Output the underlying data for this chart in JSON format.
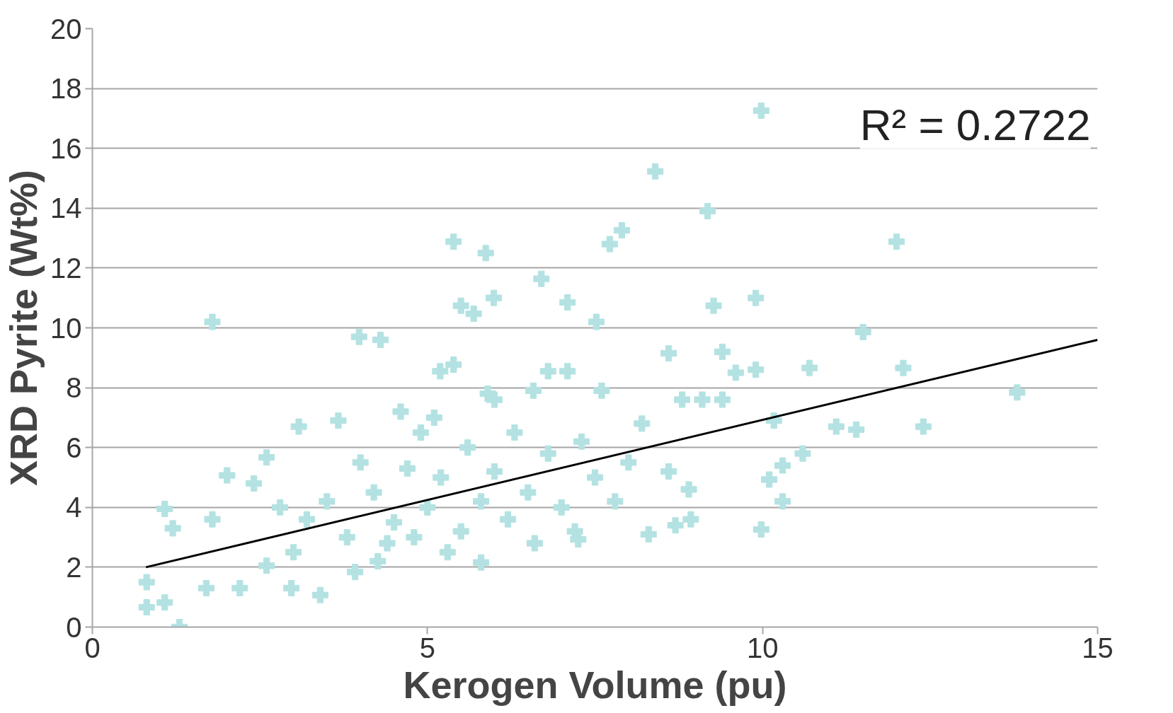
{
  "chart_data": {
    "type": "scatter",
    "xlabel": "Kerogen Volume (pu)",
    "ylabel": "XRD Pyrite (Wt%)",
    "xlim": [
      0,
      15
    ],
    "xticks": [
      0,
      5,
      10,
      15
    ],
    "ylim": [
      0,
      20
    ],
    "yticks": [
      0,
      2,
      4,
      6,
      8,
      10,
      12,
      14,
      16,
      18,
      20
    ],
    "grid": "y",
    "annotations": [
      "R² = 0.2722"
    ],
    "series": [
      {
        "marker": "cross",
        "color": "#b4e2e2",
        "x": [
          0.81,
          0.81,
          1.08,
          1.08,
          1.2,
          1.3,
          1.79,
          1.79,
          2.01,
          1.7,
          2.41,
          2.6,
          3.08,
          3.4,
          3.67,
          3.98,
          4.3,
          4.6,
          5.19,
          5.39,
          5.39,
          5.5,
          5.69,
          5.87,
          5.99,
          6.7,
          7.09,
          7.09,
          6.8,
          6.58,
          7.52,
          7.72,
          7.9,
          8.4,
          9.18,
          8.6,
          9.27,
          9.4,
          9.6,
          9.9,
          9.9,
          9.98,
          9.98,
          10.1,
          10.17,
          10.3,
          10.3,
          10.6,
          10.7,
          11.1,
          11.4,
          11.5,
          12.0,
          12.1,
          12.4,
          13.8,
          8.3,
          8.7,
          8.93,
          7.25,
          5.8,
          2.97,
          2.6,
          2.2,
          3.92,
          4.26,
          4.0,
          4.2,
          4.5,
          4.8,
          5.0,
          5.2,
          5.5,
          5.8,
          6.0,
          6.2,
          6.5,
          6.8,
          7.0,
          7.2,
          7.5,
          7.8,
          8.0,
          8.2,
          6.3,
          5.6,
          4.9,
          4.4,
          3.8,
          3.5,
          3.2,
          3.0,
          2.8,
          6.6,
          5.3,
          4.7,
          7.3,
          6.0,
          5.1,
          8.6,
          8.9,
          9.1,
          8.8,
          9.4,
          7.6,
          5.9
        ],
        "values": [
          1.5,
          0.66,
          0.82,
          3.95,
          3.3,
          0.0,
          10.2,
          3.6,
          5.07,
          1.3,
          4.8,
          5.67,
          6.7,
          1.07,
          6.9,
          9.7,
          9.6,
          7.2,
          8.55,
          8.77,
          12.88,
          10.74,
          10.47,
          12.5,
          11.0,
          11.64,
          10.85,
          8.55,
          8.55,
          7.9,
          10.2,
          12.8,
          13.26,
          15.23,
          13.9,
          9.15,
          10.74,
          9.2,
          8.5,
          11.0,
          8.6,
          17.26,
          3.26,
          4.93,
          6.9,
          5.4,
          4.2,
          5.8,
          8.66,
          6.7,
          6.6,
          9.86,
          12.88,
          8.66,
          6.7,
          7.84,
          3.1,
          3.4,
          3.6,
          2.93,
          2.16,
          1.3,
          2.05,
          1.3,
          1.84,
          2.2,
          5.5,
          4.5,
          3.5,
          3.0,
          4.0,
          5.0,
          3.2,
          4.2,
          5.2,
          3.6,
          4.5,
          5.8,
          4.0,
          3.2,
          5.0,
          4.2,
          5.5,
          6.8,
          6.5,
          6.0,
          6.5,
          2.8,
          3.0,
          4.2,
          3.6,
          2.5,
          4.0,
          2.8,
          2.5,
          5.3,
          6.2,
          7.6,
          7.0,
          5.2,
          4.6,
          7.6,
          7.6,
          7.6,
          7.9,
          7.8
        ]
      },
      {
        "type": "line",
        "color": "#000000",
        "x": [
          0.8,
          15
        ],
        "values": [
          2.0,
          9.6
        ]
      }
    ]
  }
}
